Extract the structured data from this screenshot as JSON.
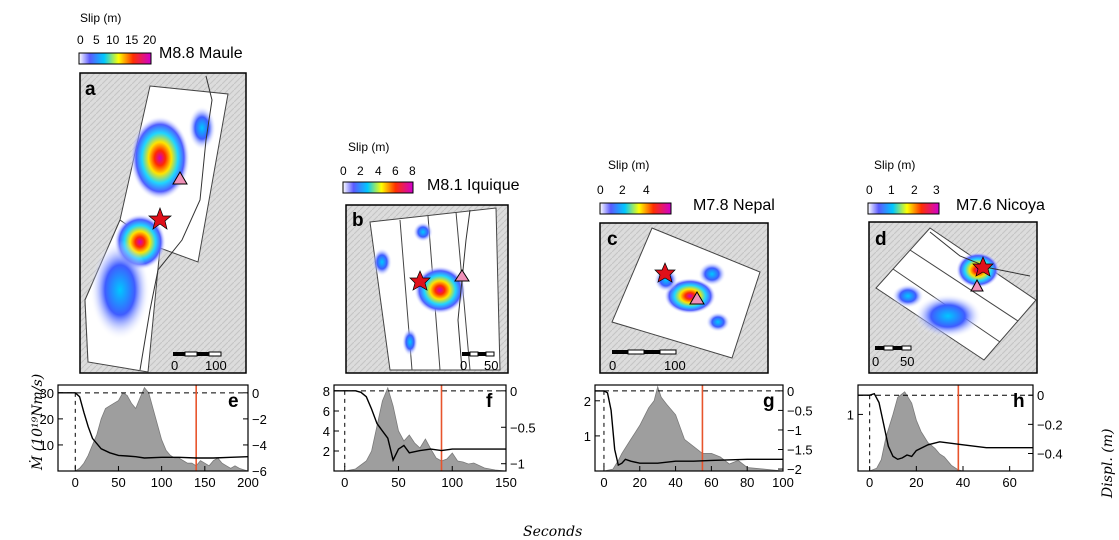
{
  "xlabel": "Seconds",
  "ylabel_left": "Ṁ (10¹⁹Nm/s)",
  "ylabel_right": "Displ. (m)",
  "colors": {
    "moment_rate_fill": "#9e9e9e",
    "displacement_line": "#000000",
    "vertical_marker": "#e8542c",
    "epicenter_star": "#e0101a",
    "station_triangle": "#f090b8"
  },
  "maps": [
    {
      "panel": "a",
      "event": "M8.8 Maule",
      "colorbar_title": "Slip (m)",
      "colorbar_ticks": [
        "0",
        "5",
        "10",
        "15",
        "20"
      ],
      "scale_ticks": [
        "0",
        "100"
      ]
    },
    {
      "panel": "b",
      "event": "M8.1 Iquique",
      "colorbar_title": "Slip (m)",
      "colorbar_ticks": [
        "0",
        "2",
        "4",
        "6",
        "8"
      ],
      "scale_ticks": [
        "0",
        "50"
      ]
    },
    {
      "panel": "c",
      "event": "M7.8 Nepal",
      "colorbar_title": "Slip (m)",
      "colorbar_ticks": [
        "0",
        "2",
        "4"
      ],
      "scale_ticks": [
        "0",
        "100"
      ]
    },
    {
      "panel": "d",
      "event": "M7.6 Nicoya",
      "colorbar_title": "Slip (m)",
      "colorbar_ticks": [
        "0",
        "1",
        "2",
        "3"
      ],
      "scale_ticks": [
        "0",
        "50"
      ]
    }
  ],
  "chart_data": [
    {
      "panel": "e",
      "type": "area",
      "xlim": [
        -20,
        200
      ],
      "xticks": [
        0,
        50,
        100,
        150,
        200
      ],
      "ylim_left": [
        0,
        33
      ],
      "yticks_left": [
        10,
        20,
        30
      ],
      "ylim_right": [
        -6,
        0.6
      ],
      "yticks_right": [
        0,
        -2,
        -4,
        -6
      ],
      "marker_x": 140,
      "moment_rate": {
        "x": [
          -20,
          0,
          5,
          10,
          15,
          20,
          25,
          30,
          35,
          40,
          45,
          50,
          55,
          60,
          65,
          70,
          75,
          80,
          85,
          90,
          95,
          100,
          105,
          110,
          115,
          120,
          125,
          130,
          135,
          140,
          145,
          150,
          155,
          160,
          165,
          170,
          175,
          180,
          185,
          190,
          195,
          200
        ],
        "y": [
          0,
          0,
          1,
          3,
          6,
          10,
          14,
          20,
          24,
          25,
          26,
          27,
          30,
          29,
          26,
          24,
          28,
          32,
          30,
          24,
          18,
          12,
          8,
          6,
          5,
          5,
          4,
          3,
          3,
          2,
          4,
          3,
          2,
          4,
          5,
          3,
          2,
          1,
          2,
          1,
          0.5,
          0
        ]
      },
      "displacement": {
        "x": [
          -20,
          0,
          5,
          10,
          15,
          20,
          30,
          40,
          50,
          60,
          70,
          80,
          100,
          120,
          140,
          160,
          180,
          200
        ],
        "y": [
          0,
          0,
          -0.3,
          -1.5,
          -2.6,
          -3.5,
          -4.3,
          -4.6,
          -4.8,
          -4.85,
          -4.9,
          -5.0,
          -4.95,
          -4.95,
          -5.0,
          -5.0,
          -4.95,
          -4.9
        ]
      }
    },
    {
      "panel": "f",
      "type": "area",
      "xlim": [
        -10,
        150
      ],
      "xticks": [
        0,
        50,
        100,
        150
      ],
      "ylim_left": [
        0,
        8.6
      ],
      "yticks_left": [
        2,
        4,
        6,
        8
      ],
      "ylim_right": [
        -1.1,
        0.08
      ],
      "yticks_right": [
        0.0,
        -0.5,
        -1.0
      ],
      "marker_x": 90,
      "moment_rate": {
        "x": [
          -10,
          0,
          10,
          20,
          25,
          30,
          35,
          40,
          45,
          50,
          55,
          60,
          65,
          70,
          75,
          80,
          85,
          90,
          95,
          100,
          105,
          110,
          115,
          120,
          130,
          140,
          150
        ],
        "y": [
          0,
          0,
          0.2,
          1.0,
          2.0,
          4.5,
          7.0,
          8.3,
          6.5,
          4.0,
          3.0,
          3.6,
          2.8,
          2.3,
          3.2,
          2.2,
          1.3,
          1.0,
          1.2,
          1.8,
          1.0,
          0.9,
          0.7,
          0.8,
          0.3,
          0.1,
          0
        ]
      },
      "displacement": {
        "x": [
          -10,
          0,
          10,
          15,
          20,
          25,
          30,
          35,
          40,
          45,
          50,
          55,
          60,
          70,
          80,
          90,
          100,
          150
        ],
        "y": [
          0,
          0,
          0,
          -0.02,
          -0.08,
          -0.25,
          -0.45,
          -0.55,
          -0.65,
          -0.95,
          -0.8,
          -0.75,
          -0.85,
          -0.82,
          -0.8,
          -0.82,
          -0.8,
          -0.8
        ]
      }
    },
    {
      "panel": "g",
      "type": "area",
      "xlim": [
        -5,
        100
      ],
      "xticks": [
        0,
        20,
        40,
        60,
        80,
        100
      ],
      "ylim_left": [
        0,
        2.45
      ],
      "yticks_left": [
        1,
        2
      ],
      "ylim_right": [
        -2.05,
        0.15
      ],
      "yticks_right": [
        0.0,
        -0.5,
        -1.0,
        -1.5,
        -2.0
      ],
      "marker_x": 55,
      "moment_rate": {
        "x": [
          -5,
          0,
          5,
          8,
          10,
          15,
          20,
          25,
          28,
          30,
          32,
          35,
          40,
          45,
          50,
          55,
          60,
          65,
          70,
          75,
          80,
          100
        ],
        "y": [
          0,
          0,
          0.05,
          0.3,
          0.5,
          0.9,
          1.3,
          1.8,
          2.0,
          2.4,
          2.1,
          1.9,
          1.6,
          0.9,
          0.7,
          0.5,
          0.5,
          0.4,
          0.2,
          0.3,
          0.1,
          0
        ]
      },
      "displacement": {
        "x": [
          -5,
          0,
          2,
          4,
          6,
          8,
          10,
          12,
          15,
          20,
          30,
          40,
          50,
          60,
          80,
          100
        ],
        "y": [
          0,
          0,
          -0.05,
          -0.5,
          -1.5,
          -1.9,
          -1.85,
          -1.75,
          -1.8,
          -1.85,
          -1.85,
          -1.8,
          -1.8,
          -1.78,
          -1.75,
          -1.75
        ]
      }
    },
    {
      "panel": "h",
      "type": "area",
      "xlim": [
        -5,
        70
      ],
      "xticks": [
        0,
        20,
        40,
        60
      ],
      "ylim_left": [
        0,
        1.52
      ],
      "yticks_left": [
        1
      ],
      "ylim_right": [
        -0.52,
        0.07
      ],
      "yticks_right": [
        0.0,
        -0.2,
        -0.4
      ],
      "marker_x": 38,
      "moment_rate": {
        "x": [
          -5,
          0,
          3,
          5,
          7,
          10,
          12,
          15,
          18,
          20,
          22,
          25,
          28,
          30,
          32,
          35,
          38,
          40,
          70
        ],
        "y": [
          0,
          0,
          0.05,
          0.2,
          0.6,
          1.0,
          1.3,
          1.4,
          1.2,
          0.9,
          0.7,
          0.5,
          0.4,
          0.3,
          0.25,
          0.1,
          0.02,
          0,
          0
        ]
      },
      "displacement": {
        "x": [
          -5,
          0,
          2,
          4,
          6,
          8,
          10,
          12,
          14,
          16,
          18,
          20,
          25,
          30,
          40,
          50,
          60,
          70
        ],
        "y": [
          0,
          0,
          0.01,
          -0.05,
          -0.2,
          -0.35,
          -0.42,
          -0.44,
          -0.43,
          -0.41,
          -0.42,
          -0.38,
          -0.34,
          -0.32,
          -0.34,
          -0.36,
          -0.36,
          -0.36
        ]
      }
    }
  ]
}
